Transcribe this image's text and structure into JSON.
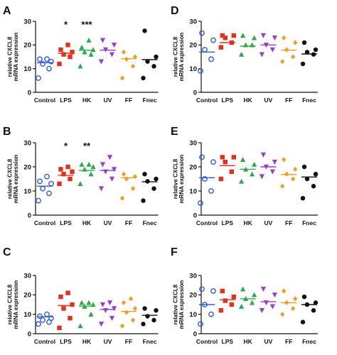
{
  "colors": {
    "Control": "#2f5bd8",
    "LPS": "#e0301e",
    "HK": "#2ea84a",
    "UV": "#9a3bc9",
    "FF": "#f0a020",
    "Fnec": "#111111"
  },
  "marker_shapes": {
    "Control": "open-circle",
    "LPS": "square",
    "HK": "triangle-up",
    "UV": "triangle-down",
    "FF": "diamond",
    "Fnec": "circle"
  },
  "chart_data": [
    {
      "type": "scatter",
      "panel": "A",
      "ylabel": "relative CXCL8 mRNA expression",
      "ylim": [
        0,
        30
      ],
      "yticks": [
        0,
        10,
        20,
        30
      ],
      "categories": [
        "Control",
        "LPS",
        "HK",
        "UV",
        "FF",
        "Fnec"
      ],
      "points": [
        [
          6,
          10,
          12,
          13,
          14,
          14
        ],
        [
          12,
          15,
          16,
          17,
          18,
          20
        ],
        [
          11,
          16,
          17,
          18,
          19,
          22
        ],
        [
          13,
          16,
          18,
          20,
          22
        ],
        [
          6,
          11,
          14,
          15,
          17
        ],
        [
          6,
          11,
          13,
          15,
          26
        ]
      ],
      "means": [
        12.5,
        16.5,
        17.8,
        17.8,
        14.2,
        13.8
      ],
      "significance": [
        "",
        "*",
        "***",
        "",
        "",
        ""
      ]
    },
    {
      "type": "scatter",
      "panel": "D",
      "ylabel": "relative CXCL8 mRNA expression",
      "ylim": [
        0,
        30
      ],
      "yticks": [
        0,
        10,
        20,
        30
      ],
      "categories": [
        "Control",
        "LPS",
        "HK",
        "UV",
        "FF",
        "Fnec"
      ],
      "points": [
        [
          9,
          14,
          18,
          22,
          25
        ],
        [
          19,
          21,
          23,
          24,
          24
        ],
        [
          16,
          20,
          20,
          23,
          24
        ],
        [
          16,
          18,
          20,
          23,
          24
        ],
        [
          13,
          15,
          18,
          21,
          23
        ],
        [
          12,
          16,
          17,
          18,
          21
        ]
      ],
      "means": [
        17,
        21,
        19.5,
        20,
        17.8,
        16.2
      ],
      "significance": [
        "",
        "",
        "",
        "",
        "",
        ""
      ]
    },
    {
      "type": "scatter",
      "panel": "B",
      "ylabel": "relative CXCL8 mRNA expression",
      "ylim": [
        0,
        30
      ],
      "yticks": [
        0,
        10,
        20,
        30
      ],
      "categories": [
        "Control",
        "LPS",
        "HK",
        "UV",
        "FF",
        "Fnec"
      ],
      "points": [
        [
          6,
          9,
          11,
          13,
          14,
          16
        ],
        [
          13,
          15,
          17,
          18,
          19,
          20
        ],
        [
          13,
          17,
          19,
          20,
          21,
          21
        ],
        [
          11,
          15,
          18,
          19,
          21,
          24
        ],
        [
          7,
          11,
          15,
          16,
          17
        ],
        [
          6,
          11,
          14,
          15,
          17
        ]
      ],
      "means": [
        12,
        16.5,
        18.5,
        18.5,
        15.5,
        13.8
      ],
      "significance": [
        "",
        "*",
        "**",
        "",
        "",
        ""
      ]
    },
    {
      "type": "scatter",
      "panel": "E",
      "ylabel": "relative CXCL8 mRNA expression",
      "ylim": [
        0,
        30
      ],
      "yticks": [
        0,
        10,
        20,
        30
      ],
      "categories": [
        "Control",
        "LPS",
        "HK",
        "UV",
        "FF",
        "Fnec"
      ],
      "points": [
        [
          5,
          10,
          15,
          22,
          24
        ],
        [
          15,
          18,
          22,
          24,
          24
        ],
        [
          14,
          17,
          19,
          21,
          23
        ],
        [
          16,
          18,
          20,
          22,
          25
        ],
        [
          12,
          15,
          17,
          19,
          23
        ],
        [
          7,
          12,
          15,
          17,
          20
        ]
      ],
      "means": [
        15.5,
        20.5,
        19,
        20,
        16.8,
        15.8
      ],
      "significance": [
        "",
        "",
        "",
        "",
        "",
        ""
      ]
    },
    {
      "type": "scatter",
      "panel": "C",
      "ylabel": "relative CXCL8 mRNA expression",
      "ylim": [
        0,
        30
      ],
      "yticks": [
        0,
        10,
        20,
        30
      ],
      "categories": [
        "Control",
        "LPS",
        "HK",
        "UV",
        "FF",
        "Fnec"
      ],
      "points": [
        [
          5,
          6,
          7,
          8,
          9,
          10
        ],
        [
          3,
          8,
          13,
          15,
          19,
          21
        ],
        [
          4,
          10,
          14,
          15,
          16,
          16
        ],
        [
          5,
          8,
          12,
          13,
          15,
          16
        ],
        [
          4,
          7,
          11,
          13,
          16,
          18
        ],
        [
          5,
          7,
          9,
          12,
          13
        ]
      ],
      "means": [
        8.7,
        14.5,
        14.2,
        12.5,
        11.5,
        9.5
      ],
      "significance": [
        "",
        "",
        "",
        "",
        "",
        ""
      ]
    },
    {
      "type": "scatter",
      "panel": "F",
      "ylabel": "relative CXCL8 mRNA expression",
      "ylim": [
        0,
        30
      ],
      "yticks": [
        0,
        10,
        20,
        30
      ],
      "categories": [
        "Control",
        "LPS",
        "HK",
        "UV",
        "FF",
        "Fnec"
      ],
      "points": [
        [
          5,
          10,
          15,
          22,
          23
        ],
        [
          12,
          15,
          17,
          19,
          22
        ],
        [
          14,
          16,
          18,
          20,
          23
        ],
        [
          12,
          14,
          16,
          20,
          23
        ],
        [
          10,
          13,
          16,
          18,
          22
        ],
        [
          6,
          12,
          15,
          16,
          19
        ]
      ],
      "means": [
        15,
        17.5,
        18,
        16.5,
        16,
        15
      ],
      "significance": [
        "",
        "",
        "",
        "",
        "",
        ""
      ]
    }
  ]
}
